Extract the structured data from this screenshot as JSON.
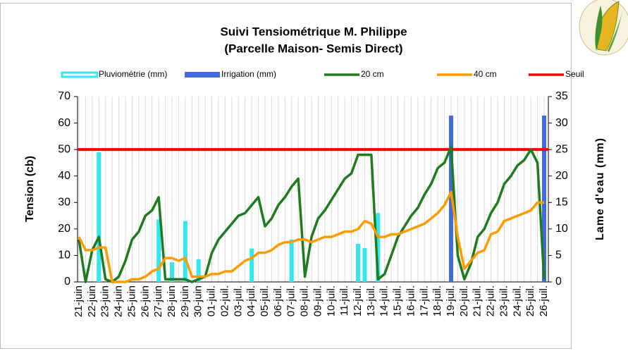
{
  "chart_data": {
    "type": "combo",
    "title": "Suivi Tensiométrique M. Philippe",
    "subtitle": "(Parcelle Maison- Semis Direct)",
    "y_label": "Tension (cb)",
    "y2_label": "Lame d'eau (mm)",
    "categories": [
      "21-juin",
      null,
      "22-juin",
      null,
      "23-juin",
      null,
      "24-juin",
      null,
      "25-juin",
      null,
      "26-juin",
      null,
      "27-juin",
      null,
      "28-juin",
      null,
      "29-juin",
      null,
      "30-juin",
      null,
      "01-juil.",
      null,
      "02-juil.",
      null,
      "03-juil.",
      null,
      "04-juil.",
      null,
      "05-juil.",
      null,
      "06-juil.",
      null,
      "07-juil.",
      null,
      "08-juil.",
      null,
      "09-juil.",
      null,
      "10-juil.",
      null,
      "11-juil.",
      null,
      "12-juil.",
      null,
      "13-juil.",
      null,
      "14-juil.",
      null,
      "15-juil.",
      null,
      "16-juil.",
      null,
      "17-juil.",
      null,
      "18-juil.",
      null,
      "19-juil.",
      null,
      "20-juil.",
      null,
      "21-juil.",
      null,
      "22-juil.",
      null,
      "23-juil.",
      null,
      "24-juil.",
      null,
      "25-juil.",
      null,
      "26-juil."
    ],
    "series": [
      {
        "name": "Pluviométrie (mm)",
        "color": "#33e6f0",
        "type": "bar",
        "axis": "y2",
        "values": [
          null,
          null,
          null,
          24.5,
          null,
          null,
          null,
          null,
          null,
          null,
          null,
          null,
          11.8,
          null,
          3.7,
          null,
          11.5,
          null,
          4.3,
          null,
          null,
          null,
          null,
          null,
          null,
          null,
          6.3,
          null,
          null,
          null,
          null,
          null,
          8,
          null,
          null,
          null,
          null,
          null,
          null,
          null,
          null,
          null,
          7.2,
          6.4,
          null,
          13,
          null,
          null,
          null,
          null,
          null,
          null,
          null,
          null,
          null,
          null,
          null,
          null,
          null,
          null,
          null,
          null,
          null,
          null,
          null,
          null,
          null,
          null,
          null,
          null,
          null
        ]
      },
      {
        "name": "Irrigation (mm)",
        "color": "#4169e1",
        "type": "bar",
        "axis": "y2",
        "values": [
          null,
          null,
          null,
          null,
          null,
          null,
          null,
          null,
          null,
          null,
          null,
          null,
          null,
          null,
          null,
          null,
          null,
          null,
          null,
          null,
          null,
          null,
          null,
          null,
          null,
          null,
          null,
          null,
          null,
          null,
          null,
          null,
          null,
          null,
          null,
          null,
          null,
          null,
          null,
          null,
          null,
          null,
          null,
          null,
          null,
          null,
          null,
          null,
          null,
          null,
          null,
          null,
          null,
          null,
          null,
          null,
          31.4,
          null,
          null,
          null,
          null,
          null,
          null,
          null,
          null,
          null,
          null,
          null,
          null,
          null,
          31.4
        ]
      },
      {
        "name": "20 cm",
        "color": "#1e7b1e",
        "type": "line",
        "values": [
          16,
          0,
          12,
          17,
          1,
          0,
          2,
          8,
          16,
          19,
          25,
          27,
          32,
          1,
          1,
          1,
          1,
          0,
          1,
          2,
          11,
          16,
          19,
          22,
          25,
          26,
          29,
          32,
          21,
          24,
          29,
          32,
          36,
          39,
          2,
          17,
          24,
          27,
          31,
          35,
          39,
          41,
          48,
          48,
          48,
          1,
          3,
          10,
          17,
          21,
          25,
          28,
          33,
          37,
          43,
          45,
          51,
          10,
          1,
          7,
          17,
          20,
          26,
          30,
          37,
          40,
          44,
          46,
          50,
          45,
          1
        ]
      },
      {
        "name": "40 cm",
        "color": "#ff9b00",
        "type": "line",
        "values": [
          17,
          12,
          12,
          13,
          13,
          0,
          0,
          0,
          1,
          1,
          2,
          4,
          5,
          9,
          9,
          8,
          9,
          2,
          2,
          2,
          3,
          3,
          4,
          4,
          6,
          8,
          9,
          11,
          11,
          12,
          14,
          15,
          15,
          16,
          16,
          15,
          16,
          17,
          17,
          18,
          19,
          19,
          20,
          23,
          22,
          17,
          17,
          18,
          18,
          19,
          20,
          21,
          22,
          24,
          26,
          29,
          34,
          17,
          5,
          8,
          11,
          12,
          18,
          19,
          23,
          24,
          25,
          26,
          27,
          30,
          30
        ]
      }
    ],
    "threshold": {
      "name": "Seuil",
      "color": "#ff0000",
      "value": 50
    },
    "ylim": [
      0,
      70
    ],
    "yticks": [
      0,
      10,
      20,
      30,
      40,
      50,
      60,
      70
    ],
    "y2lim": [
      0,
      35
    ],
    "y2ticks": [
      0,
      5,
      10,
      15,
      20,
      25,
      30,
      35
    ],
    "grid": true
  }
}
